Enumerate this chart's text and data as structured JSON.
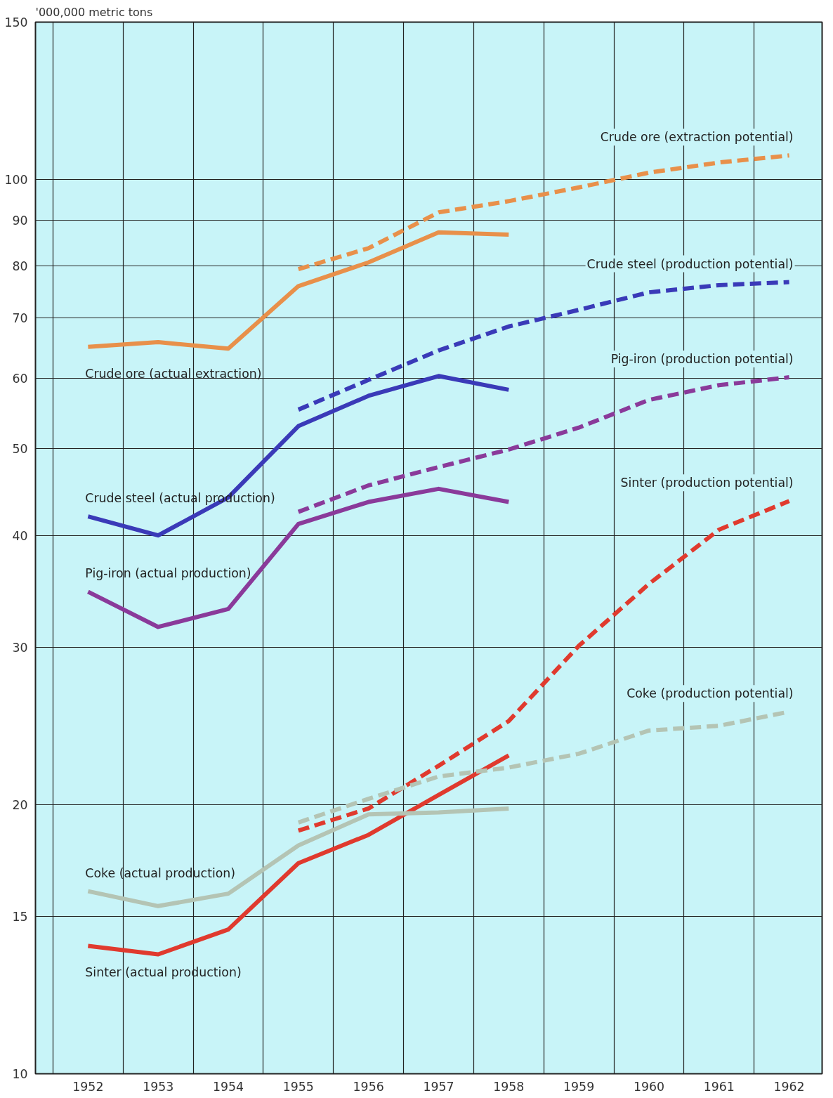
{
  "chart_data": {
    "type": "line",
    "ylabel": "'000,000 metric tons",
    "log": true,
    "grid": true,
    "marker": "none",
    "xlim": [
      1951.25,
      1962.47
    ],
    "ylim": [
      10,
      150
    ],
    "xticks": [
      {
        "value": 1951.5,
        "label": null
      },
      {
        "value": 1952.5,
        "label": null
      },
      {
        "value": 1953.5,
        "label": null
      },
      {
        "value": 1954.5,
        "label": null
      },
      {
        "value": 1955.5,
        "label": null
      },
      {
        "value": 1956.5,
        "label": null
      },
      {
        "value": 1957.5,
        "label": null
      },
      {
        "value": 1958.5,
        "label": null
      },
      {
        "value": 1959.5,
        "label": null
      },
      {
        "value": 1960.5,
        "label": null
      },
      {
        "value": 1961.5,
        "label": null
      },
      1952,
      1953,
      1954,
      1955,
      1956,
      1957,
      1958,
      1959,
      1960,
      1961,
      1962
    ],
    "yticks": [
      10,
      15,
      20,
      30,
      40,
      50,
      60,
      70,
      80,
      90,
      100,
      150
    ],
    "series": [
      {
        "name": "Crude ore (actual extraction)",
        "color": "#e8904a",
        "line_style": "solid",
        "x": [
          1952,
          1953,
          1954,
          1955,
          1956,
          1957,
          1958
        ],
        "values": [
          65.0,
          65.8,
          64.7,
          76.0,
          80.8,
          87.3,
          86.8
        ]
      },
      {
        "name": "Crude ore (extraction potential)",
        "color": "#e8904a",
        "line_style": "dashed",
        "x": [
          1955,
          1956,
          1957,
          1958,
          1959,
          1960,
          1961,
          1962
        ],
        "values": [
          79.4,
          83.8,
          91.9,
          94.6,
          98.0,
          101.8,
          104.5,
          106.4
        ]
      },
      {
        "name": "Crude steel (actual production)",
        "color": "#3a3ab8",
        "line_style": "solid",
        "x": [
          1952,
          1953,
          1954,
          1955,
          1956,
          1957,
          1958
        ],
        "values": [
          42.0,
          40.0,
          44.1,
          53.0,
          57.3,
          60.3,
          58.2
        ]
      },
      {
        "name": "Crude steel (production potential)",
        "color": "#3a3ab8",
        "line_style": "dashed",
        "x": [
          1955,
          1956,
          1957,
          1958,
          1959,
          1960,
          1961,
          1962
        ],
        "values": [
          55.3,
          59.7,
          64.4,
          68.5,
          71.5,
          74.8,
          76.2,
          76.8
        ]
      },
      {
        "name": "Pig-iron (actual production)",
        "color": "#8a3a9a",
        "line_style": "solid",
        "x": [
          1952,
          1953,
          1954,
          1955,
          1956,
          1957,
          1958
        ],
        "values": [
          34.6,
          31.6,
          33.1,
          41.2,
          43.6,
          45.1,
          43.6
        ]
      },
      {
        "name": "Pig-iron (production potential)",
        "color": "#8a3a9a",
        "line_style": "dashed",
        "x": [
          1955,
          1956,
          1957,
          1958,
          1959,
          1960,
          1961,
          1962
        ],
        "values": [
          42.5,
          45.5,
          47.7,
          49.9,
          52.8,
          56.7,
          58.9,
          60.1
        ]
      },
      {
        "name": "Sinter (actual production)",
        "color": "#e03a2e",
        "line_style": "solid",
        "x": [
          1952,
          1953,
          1954,
          1955,
          1956,
          1957,
          1958
        ],
        "values": [
          13.9,
          13.6,
          14.5,
          17.2,
          18.5,
          20.5,
          22.7
        ]
      },
      {
        "name": "Sinter (production potential)",
        "color": "#e03a2e",
        "line_style": "dashed",
        "x": [
          1955,
          1956,
          1957,
          1958,
          1959,
          1960,
          1961,
          1962
        ],
        "values": [
          18.7,
          19.8,
          22.1,
          24.8,
          30.1,
          35.3,
          40.6,
          43.7
        ]
      },
      {
        "name": "Coke (actual production)",
        "color": "#b4c4b4",
        "line_style": "solid",
        "x": [
          1952,
          1953,
          1954,
          1955,
          1956,
          1957,
          1958
        ],
        "values": [
          16.0,
          15.4,
          15.9,
          18.0,
          19.5,
          19.6,
          19.8
        ]
      },
      {
        "name": "Coke (production potential)",
        "color": "#b4c4b4",
        "line_style": "dashed",
        "x": [
          1955,
          1956,
          1957,
          1958,
          1959,
          1960,
          1961,
          1962
        ],
        "values": [
          19.1,
          20.3,
          21.5,
          22.0,
          22.8,
          24.2,
          24.5,
          25.4
        ]
      }
    ]
  }
}
